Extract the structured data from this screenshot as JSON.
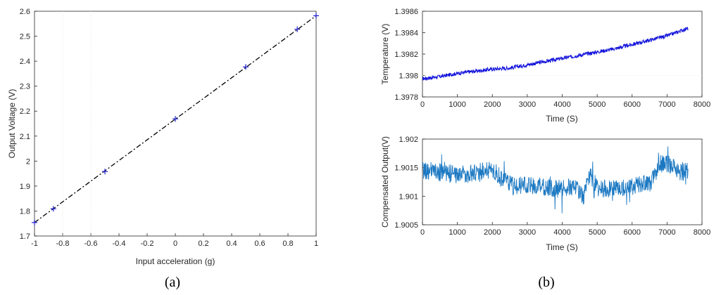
{
  "chart_data": [
    {
      "panel": "(a)",
      "type": "scatter",
      "xlabel": "Input acceleration (g)",
      "ylabel": "Output Voltage (V)",
      "xlim": [
        -1,
        1
      ],
      "ylim": [
        1.7,
        2.6
      ],
      "xticks": [
        "-1",
        "-0.8",
        "-0.6",
        "-0.4",
        "-0.2",
        "0",
        "0.2",
        "0.4",
        "0.6",
        "0.8",
        "1"
      ],
      "yticks": [
        "1.7",
        "1.8",
        "1.9",
        "2",
        "2.1",
        "2.2",
        "2.3",
        "2.4",
        "2.5",
        "2.6"
      ],
      "points": {
        "x": [
          -1,
          -0.866,
          -0.5,
          0,
          0.5,
          0.866,
          1
        ],
        "y": [
          1.754,
          1.809,
          1.958,
          2.169,
          2.377,
          2.528,
          2.582
        ]
      },
      "fit_line": {
        "x": [
          -1,
          1
        ],
        "y": [
          1.754,
          2.582
        ]
      },
      "colors": {
        "points": "#1f1fd0",
        "fit": "#000000"
      }
    },
    {
      "panel": "(b) top",
      "type": "line",
      "xlabel": "Time (S)",
      "ylabel": "Temperature (V)",
      "xlim": [
        0,
        8000
      ],
      "ylim": [
        1.3978,
        1.3986
      ],
      "xticks": [
        "0",
        "1000",
        "2000",
        "3000",
        "4000",
        "5000",
        "6000",
        "7000",
        "8000"
      ],
      "yticks": [
        "1.3978",
        "1.398",
        "1.3982",
        "1.3984",
        "1.3986"
      ],
      "series": [
        {
          "x": [
            0,
            500,
            1000,
            1500,
            2000,
            2500,
            3000,
            3500,
            4000,
            4500,
            5000,
            5500,
            6000,
            6500,
            7000,
            7500,
            7600
          ],
          "values": [
            1.39797,
            1.39799,
            1.39802,
            1.39804,
            1.39806,
            1.39807,
            1.3981,
            1.39813,
            1.39816,
            1.39819,
            1.39822,
            1.39825,
            1.39829,
            1.39833,
            1.39837,
            1.39843,
            1.39844
          ]
        }
      ],
      "colors": {
        "line": "#1414dc"
      }
    },
    {
      "panel": "(b) bottom",
      "type": "line",
      "xlabel": "Time (S)",
      "ylabel": "Compensated Output(V)",
      "xlim": [
        0,
        8000
      ],
      "ylim": [
        1.9005,
        1.902
      ],
      "xticks": [
        "0",
        "1000",
        "2000",
        "3000",
        "4000",
        "5000",
        "6000",
        "7000",
        "8000"
      ],
      "yticks": [
        "1.9005",
        "1.901",
        "1.9015",
        "1.902"
      ],
      "series": [
        {
          "x": [
            0,
            500,
            1000,
            1500,
            2000,
            2300,
            2600,
            3000,
            3500,
            4000,
            4400,
            4600,
            4800,
            5000,
            5500,
            6000,
            6500,
            6800,
            7100,
            7400,
            7600
          ],
          "values": [
            1.90145,
            1.90142,
            1.90138,
            1.9014,
            1.90148,
            1.90128,
            1.9012,
            1.90118,
            1.90115,
            1.90113,
            1.90118,
            1.90098,
            1.90135,
            1.90115,
            1.90112,
            1.90118,
            1.90122,
            1.90158,
            1.90155,
            1.90142,
            1.90145
          ]
        }
      ],
      "colors": {
        "line": "#1b78c2"
      }
    }
  ],
  "panel_labels": {
    "a": "(a)",
    "b": "(b)"
  }
}
